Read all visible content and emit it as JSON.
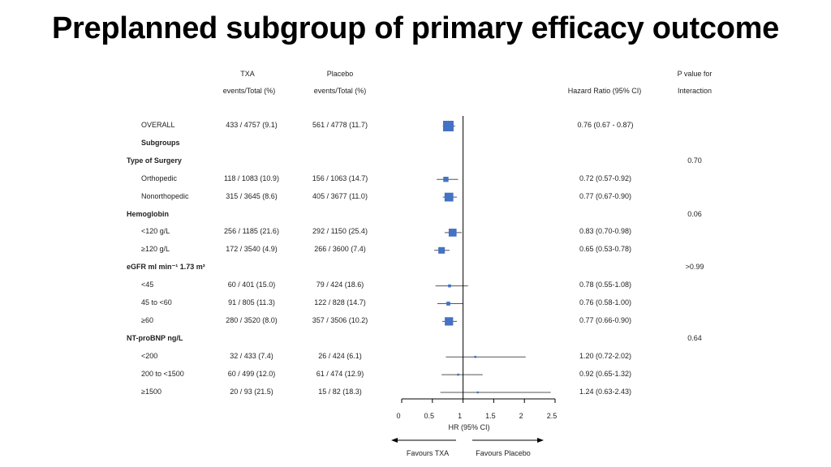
{
  "slide_title": "Preplanned subgroup of primary efficacy outcome",
  "headers": {
    "txa_1": "TXA",
    "txa_2": "events/Total (%)",
    "placebo_1": "Placebo",
    "placebo_2": "events/Total (%)",
    "hr": "Hazard Ratio (95% CI)",
    "p_1": "P value for",
    "p_2": "Interaction"
  },
  "chart_data": {
    "type": "forest",
    "title": "",
    "xlabel": "HR (95% CI)",
    "xlim": [
      0,
      2.5
    ],
    "x_ticks": [
      "0",
      "0.5",
      "1",
      "1.5",
      "2",
      "2.5"
    ],
    "reference_line": 1,
    "arrow_labels": {
      "left": "Favours TXA",
      "right": "Favours Placebo"
    },
    "rows": [
      {
        "label": "OVERALL",
        "kind": "item",
        "txa": "433 / 4757 (9.1)",
        "placebo": "561 / 4778 (11.7)",
        "hr_text": "0.76 (0.67 - 0.87)",
        "hr": 0.76,
        "lo": 0.67,
        "hi": 0.87,
        "weight": 1.0
      },
      {
        "label": "Subgroups",
        "kind": "section"
      },
      {
        "label": "Type of Surgery",
        "kind": "group",
        "p": "0.70"
      },
      {
        "label": "Orthopedic",
        "kind": "item",
        "txa": "118 / 1083 (10.9)",
        "placebo": "156 / 1063 (14.7)",
        "hr_text": "0.72 (0.57-0.92)",
        "hr": 0.72,
        "lo": 0.57,
        "hi": 0.92,
        "weight": 0.4
      },
      {
        "label": "Nonorthopedic",
        "kind": "item",
        "txa": "315 / 3645 (8.6)",
        "placebo": "405 / 3677 (11.0)",
        "hr_text": "0.77 (0.67-0.90)",
        "hr": 0.77,
        "lo": 0.67,
        "hi": 0.9,
        "weight": 0.8
      },
      {
        "label": "Hemoglobin",
        "kind": "group",
        "p": "0.06"
      },
      {
        "label": "<120 g/L",
        "kind": "item",
        "txa": "256 / 1185 (21.6)",
        "placebo": "292 / 1150 (25.4)",
        "hr_text": "0.83 (0.70-0.98)",
        "hr": 0.83,
        "lo": 0.7,
        "hi": 0.98,
        "weight": 0.7
      },
      {
        "label": "≥120 g/L",
        "kind": "item",
        "txa": "172 / 3540 (4.9)",
        "placebo": "266 / 3600 (7.4)",
        "hr_text": "0.65 (0.53-0.78)",
        "hr": 0.65,
        "lo": 0.53,
        "hi": 0.78,
        "weight": 0.55
      },
      {
        "label": "eGFR  ml min⁻¹ 1.73 m²",
        "kind": "group",
        "p": ">0.99"
      },
      {
        "label": "<45",
        "kind": "item",
        "txa": "60 / 401 (15.0)",
        "placebo": "79 / 424 (18.6)",
        "hr_text": "0.78 (0.55-1.08)",
        "hr": 0.78,
        "lo": 0.55,
        "hi": 1.08,
        "weight": 0.15
      },
      {
        "label": "45 to <60",
        "kind": "item",
        "txa": "91 / 805 (11.3)",
        "placebo": "122 / 828 (14.7)",
        "hr_text": "0.76 (0.58-1.00)",
        "hr": 0.76,
        "lo": 0.58,
        "hi": 1.0,
        "weight": 0.25
      },
      {
        "label": "≥60",
        "kind": "item",
        "txa": "280 / 3520 (8.0)",
        "placebo": "357 / 3506 (10.2)",
        "hr_text": "0.77 (0.66-0.90)",
        "hr": 0.77,
        "lo": 0.66,
        "hi": 0.9,
        "weight": 0.75
      },
      {
        "label": "NT-proBNP  ng/L",
        "kind": "group",
        "p": "0.64"
      },
      {
        "label": "<200",
        "kind": "item",
        "txa": "32 / 433 (7.4)",
        "placebo": "26 / 424 (6.1)",
        "hr_text": "1.20 (0.72-2.02)",
        "hr": 1.2,
        "lo": 0.72,
        "hi": 2.02,
        "weight": 0.05
      },
      {
        "label": "200 to <1500",
        "kind": "item",
        "txa": "60 / 499 (12.0)",
        "placebo": "61 / 474 (12.9)",
        "hr_text": "0.92 (0.65-1.32)",
        "hr": 0.92,
        "lo": 0.65,
        "hi": 1.32,
        "weight": 0.05
      },
      {
        "label": "≥1500",
        "kind": "item",
        "txa": "20 / 93 (21.5)",
        "placebo": "15 / 82 (18.3)",
        "hr_text": "1.24 (0.63-2.43)",
        "hr": 1.24,
        "lo": 0.63,
        "hi": 2.43,
        "weight": 0.03
      }
    ]
  },
  "colors": {
    "marker": "#4472c4",
    "ci_line": "#555555",
    "axis": "#000000"
  }
}
